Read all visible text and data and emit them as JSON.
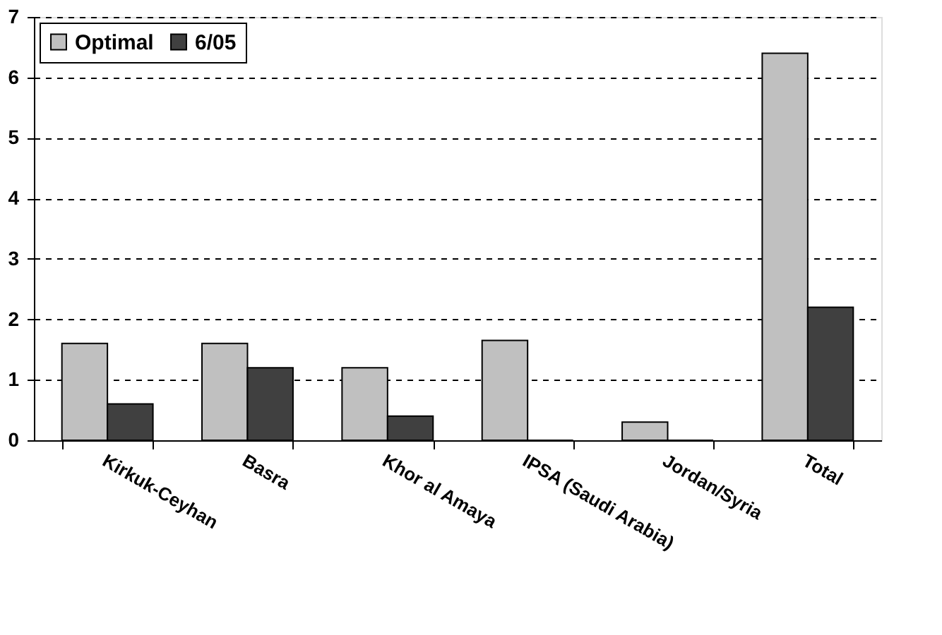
{
  "chart_data": {
    "type": "bar",
    "categories": [
      "Kirkuk-Ceyhan",
      "Basra",
      "Khor al Amaya",
      "IPSA (Saudi Arabia)",
      "Jordan/Syria",
      "Total"
    ],
    "series": [
      {
        "name": "Optimal",
        "color": "#c0c0c0",
        "values": [
          1.6,
          1.6,
          1.2,
          1.65,
          0.3,
          6.4
        ]
      },
      {
        "name": "6/05",
        "color": "#404040",
        "values": [
          0.6,
          1.2,
          0.4,
          0,
          0,
          2.2
        ]
      }
    ],
    "ylim": [
      0,
      7
    ],
    "yticks": [
      0,
      1,
      2,
      3,
      4,
      5,
      6,
      7
    ],
    "grid": "y",
    "line_style": "dashed",
    "legend": "top left"
  }
}
